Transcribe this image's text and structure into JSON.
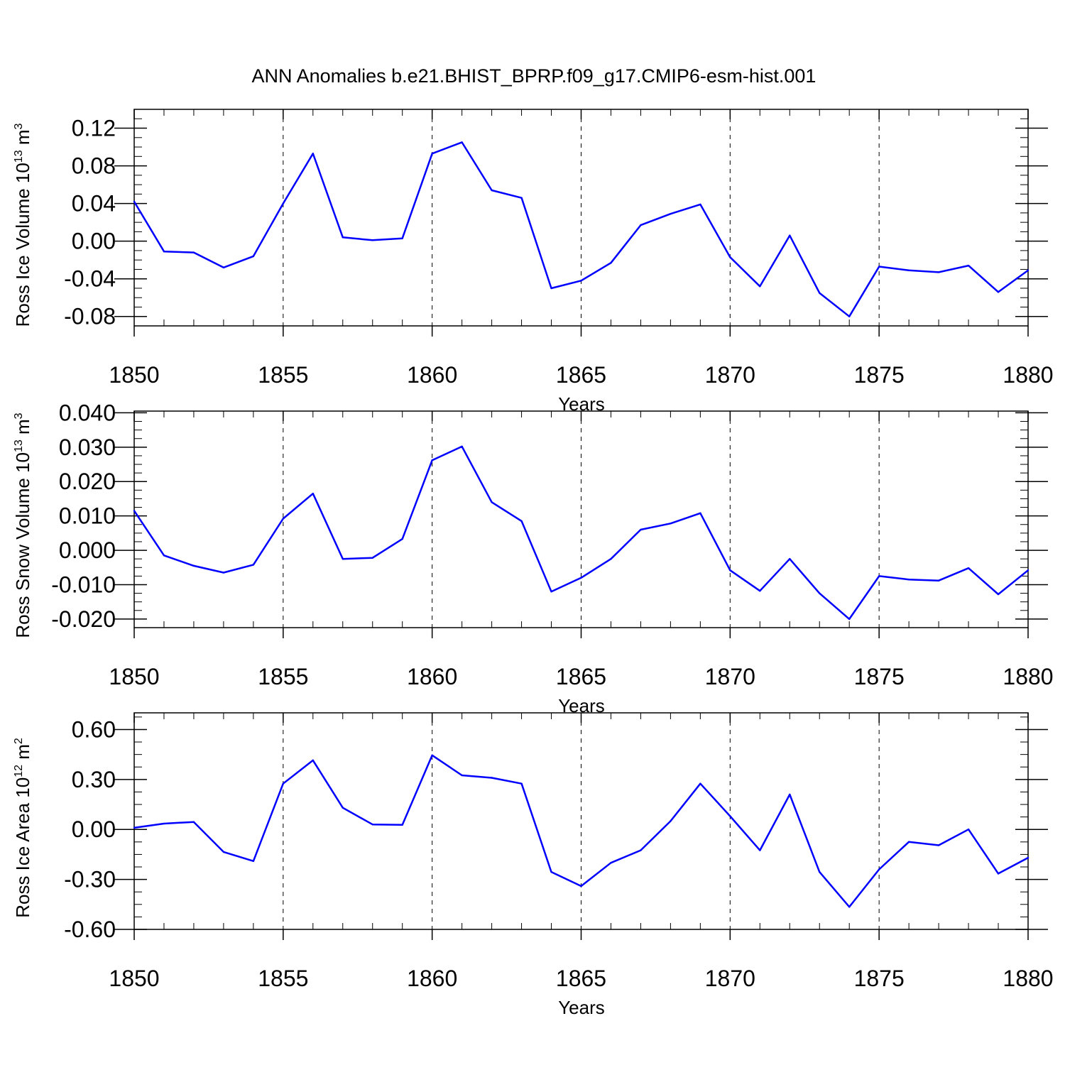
{
  "title": "ANN Anomalies b.e21.BHIST_BPRP.f09_g17.CMIP6-esm-hist.001",
  "chart_data": [
    {
      "type": "line",
      "ylabel": "Ross Ice Volume 10",
      "ylabel_exp": "13",
      "ylabel_unit": " m",
      "ylabel_unit_exp": "3",
      "xlabel": "Years",
      "xlim": [
        1850,
        1880
      ],
      "ylim": [
        -0.09,
        0.14
      ],
      "xticks": [
        1850,
        1855,
        1860,
        1865,
        1870,
        1875,
        1880
      ],
      "xticklabels": [
        "1850",
        "1855",
        "1860",
        "1865",
        "1870",
        "1875",
        "1880"
      ],
      "yticks": [
        -0.08,
        -0.04,
        0.0,
        0.04,
        0.08,
        0.12
      ],
      "yticklabels": [
        "-0.08",
        "-0.04",
        "0.00",
        "0.04",
        "0.08",
        "0.12"
      ],
      "line_color": "#0000ff",
      "x": [
        1850,
        1851,
        1852,
        1853,
        1854,
        1855,
        1856,
        1857,
        1858,
        1859,
        1860,
        1861,
        1862,
        1863,
        1864,
        1865,
        1866,
        1867,
        1868,
        1869,
        1870,
        1871,
        1872,
        1873,
        1874,
        1875,
        1876,
        1877,
        1878,
        1879,
        1880
      ],
      "y": [
        0.042,
        -0.011,
        -0.012,
        -0.028,
        -0.016,
        0.04,
        0.093,
        0.004,
        0.001,
        0.003,
        0.093,
        0.105,
        0.054,
        0.046,
        -0.05,
        -0.042,
        -0.023,
        0.017,
        0.029,
        0.039,
        -0.017,
        -0.048,
        0.006,
        -0.055,
        -0.08,
        -0.027,
        -0.031,
        -0.033,
        -0.026,
        -0.054,
        -0.031
      ]
    },
    {
      "type": "line",
      "ylabel": "Ross Snow Volume 10",
      "ylabel_exp": "13",
      "ylabel_unit": " m",
      "ylabel_unit_exp": "3",
      "xlabel": "Years",
      "xlim": [
        1850,
        1880
      ],
      "ylim": [
        -0.0225,
        0.0405
      ],
      "xticks": [
        1850,
        1855,
        1860,
        1865,
        1870,
        1875,
        1880
      ],
      "xticklabels": [
        "1850",
        "1855",
        "1860",
        "1865",
        "1870",
        "1875",
        "1880"
      ],
      "yticks": [
        -0.02,
        -0.01,
        0.0,
        0.01,
        0.02,
        0.03,
        0.04
      ],
      "yticklabels": [
        "-0.020",
        "-0.010",
        "0.000",
        "0.010",
        "0.020",
        "0.030",
        "0.040"
      ],
      "line_color": "#0000ff",
      "x": [
        1850,
        1851,
        1852,
        1853,
        1854,
        1855,
        1856,
        1857,
        1858,
        1859,
        1860,
        1861,
        1862,
        1863,
        1864,
        1865,
        1866,
        1867,
        1868,
        1869,
        1870,
        1871,
        1872,
        1873,
        1874,
        1875,
        1876,
        1877,
        1878,
        1879,
        1880
      ],
      "y": [
        0.0115,
        -0.0015,
        -0.0045,
        -0.0065,
        -0.0042,
        0.0092,
        0.0165,
        -0.0025,
        -0.0022,
        0.0033,
        0.0262,
        0.0302,
        0.014,
        0.0085,
        -0.012,
        -0.008,
        -0.0025,
        0.006,
        0.0078,
        0.0108,
        -0.0058,
        -0.0118,
        -0.0025,
        -0.0125,
        -0.02,
        -0.0075,
        -0.0085,
        -0.0088,
        -0.0052,
        -0.0128,
        -0.0058
      ]
    },
    {
      "type": "line",
      "ylabel": "Ross Ice Area 10",
      "ylabel_exp": "12",
      "ylabel_unit": " m",
      "ylabel_unit_exp": "2",
      "xlabel": "Years",
      "xlim": [
        1850,
        1880
      ],
      "ylim": [
        -0.6,
        0.7
      ],
      "xticks": [
        1850,
        1855,
        1860,
        1865,
        1870,
        1875,
        1880
      ],
      "xticklabels": [
        "1850",
        "1855",
        "1860",
        "1865",
        "1870",
        "1875",
        "1880"
      ],
      "yticks": [
        -0.6,
        -0.3,
        0.0,
        0.3,
        0.6
      ],
      "yticklabels": [
        "-0.60",
        "-0.30",
        "0.00",
        "0.30",
        "0.60"
      ],
      "line_color": "#0000ff",
      "x": [
        1850,
        1851,
        1852,
        1853,
        1854,
        1855,
        1856,
        1857,
        1858,
        1859,
        1860,
        1861,
        1862,
        1863,
        1864,
        1865,
        1866,
        1867,
        1868,
        1869,
        1870,
        1871,
        1872,
        1873,
        1874,
        1875,
        1876,
        1877,
        1878,
        1879,
        1880
      ],
      "y": [
        0.01,
        0.035,
        0.045,
        -0.135,
        -0.19,
        0.275,
        0.415,
        0.13,
        0.03,
        0.028,
        0.445,
        0.325,
        0.31,
        0.275,
        -0.255,
        -0.34,
        -0.2,
        -0.125,
        0.05,
        0.275,
        0.08,
        -0.125,
        0.21,
        -0.255,
        -0.465,
        -0.24,
        -0.075,
        -0.095,
        0.0,
        -0.265,
        -0.17
      ]
    }
  ]
}
